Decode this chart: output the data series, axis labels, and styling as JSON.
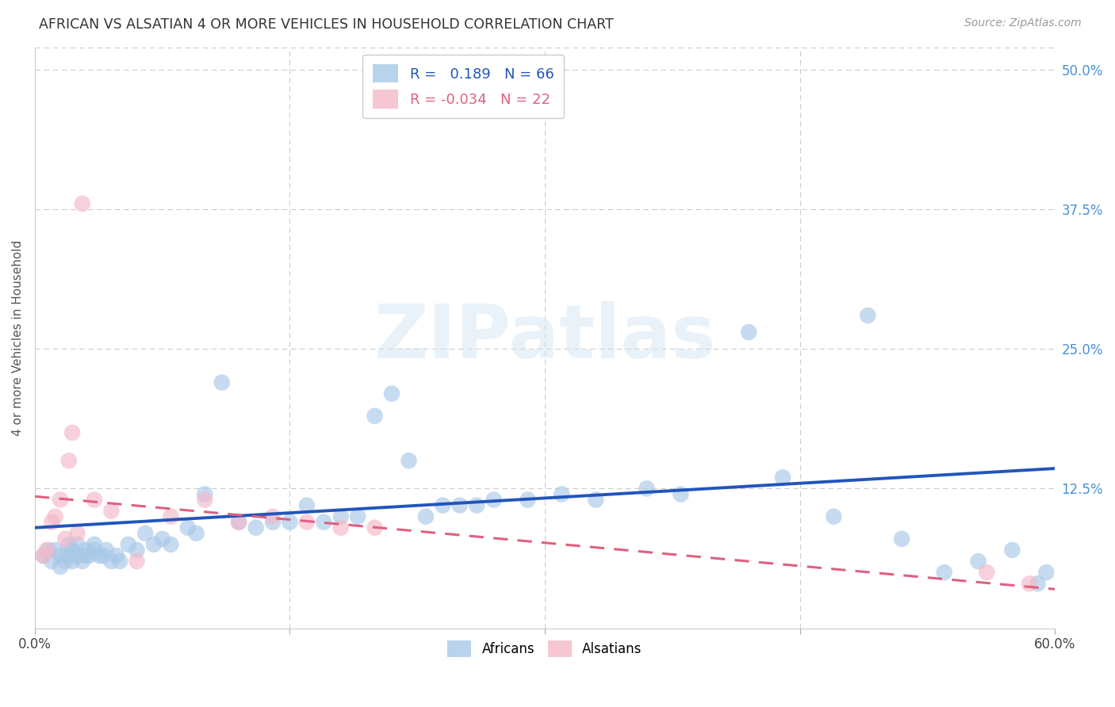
{
  "title": "AFRICAN VS ALSATIAN 4 OR MORE VEHICLES IN HOUSEHOLD CORRELATION CHART",
  "source": "Source: ZipAtlas.com",
  "ylabel": "4 or more Vehicles in Household",
  "xlim": [
    0.0,
    0.6
  ],
  "ylim": [
    0.0,
    0.52
  ],
  "y_tick_labels_right": [
    "50.0%",
    "37.5%",
    "25.0%",
    "12.5%"
  ],
  "y_tick_positions_right": [
    0.5,
    0.375,
    0.25,
    0.125
  ],
  "grid_color": "#cccccc",
  "background_color": "#ffffff",
  "african_color": "#a8c8e8",
  "alsatian_color": "#f4b8c8",
  "african_line_color": "#2255bb",
  "alsatian_line_color": "#e06080",
  "legend_R_african": "R =   0.189",
  "legend_N_african": "N = 66",
  "legend_R_alsatian": "R = -0.034",
  "legend_N_alsatian": "N = 22",
  "african_line_x0": 0.0,
  "african_line_y0": 0.09,
  "african_line_x1": 0.6,
  "african_line_y1": 0.143,
  "alsatian_line_x0": 0.0,
  "alsatian_line_y0": 0.118,
  "alsatian_line_x1": 0.6,
  "alsatian_line_y1": 0.035,
  "african_x": [
    0.005,
    0.008,
    0.01,
    0.012,
    0.015,
    0.015,
    0.018,
    0.02,
    0.02,
    0.022,
    0.022,
    0.025,
    0.025,
    0.028,
    0.03,
    0.03,
    0.032,
    0.035,
    0.035,
    0.038,
    0.04,
    0.042,
    0.045,
    0.048,
    0.05,
    0.055,
    0.06,
    0.065,
    0.07,
    0.075,
    0.08,
    0.09,
    0.095,
    0.1,
    0.11,
    0.12,
    0.13,
    0.14,
    0.15,
    0.16,
    0.17,
    0.18,
    0.19,
    0.2,
    0.21,
    0.22,
    0.23,
    0.24,
    0.25,
    0.26,
    0.27,
    0.29,
    0.31,
    0.33,
    0.36,
    0.38,
    0.42,
    0.44,
    0.47,
    0.49,
    0.51,
    0.535,
    0.555,
    0.575,
    0.59,
    0.595
  ],
  "african_y": [
    0.065,
    0.07,
    0.06,
    0.07,
    0.055,
    0.065,
    0.06,
    0.065,
    0.075,
    0.06,
    0.07,
    0.065,
    0.075,
    0.06,
    0.065,
    0.07,
    0.065,
    0.07,
    0.075,
    0.065,
    0.065,
    0.07,
    0.06,
    0.065,
    0.06,
    0.075,
    0.07,
    0.085,
    0.075,
    0.08,
    0.075,
    0.09,
    0.085,
    0.12,
    0.22,
    0.095,
    0.09,
    0.095,
    0.095,
    0.11,
    0.095,
    0.1,
    0.1,
    0.19,
    0.21,
    0.15,
    0.1,
    0.11,
    0.11,
    0.11,
    0.115,
    0.115,
    0.12,
    0.115,
    0.125,
    0.12,
    0.265,
    0.135,
    0.1,
    0.28,
    0.08,
    0.05,
    0.06,
    0.07,
    0.04,
    0.05
  ],
  "alsatian_x": [
    0.005,
    0.007,
    0.01,
    0.012,
    0.015,
    0.018,
    0.02,
    0.022,
    0.025,
    0.028,
    0.035,
    0.045,
    0.06,
    0.08,
    0.1,
    0.12,
    0.14,
    0.16,
    0.18,
    0.2,
    0.56,
    0.585
  ],
  "alsatian_y": [
    0.065,
    0.07,
    0.095,
    0.1,
    0.115,
    0.08,
    0.15,
    0.175,
    0.085,
    0.38,
    0.115,
    0.105,
    0.06,
    0.1,
    0.115,
    0.095,
    0.1,
    0.095,
    0.09,
    0.09,
    0.05,
    0.04
  ]
}
